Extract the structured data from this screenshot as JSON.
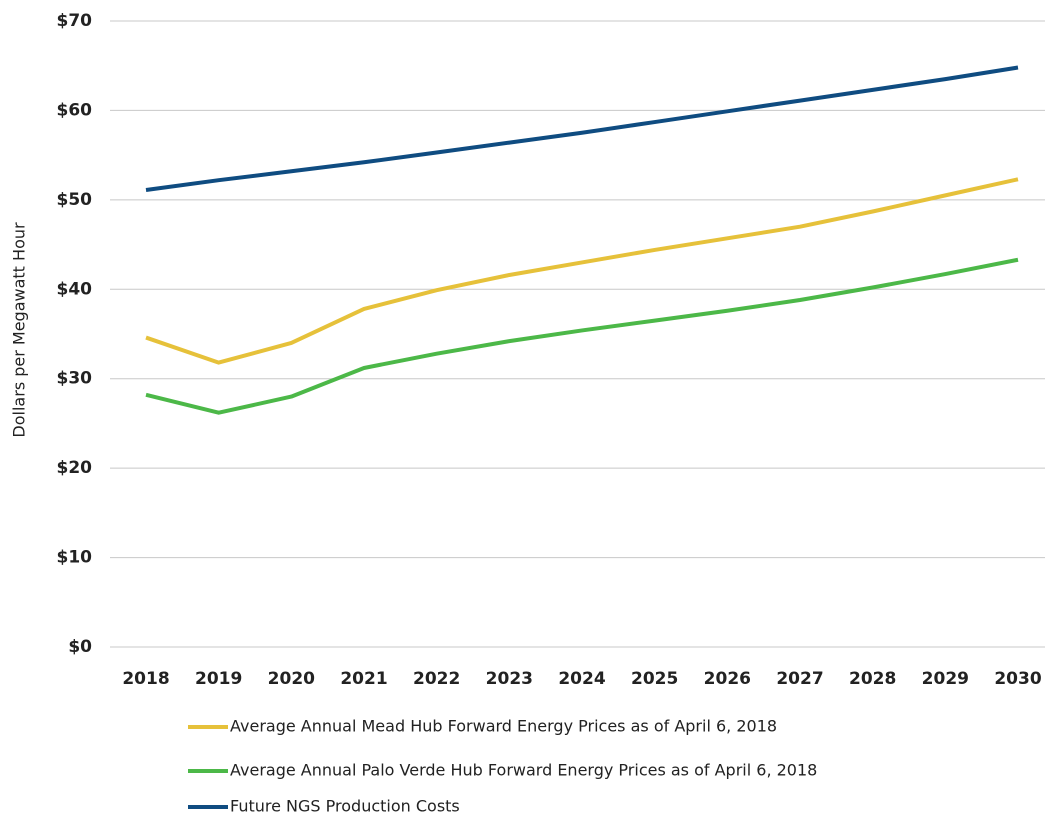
{
  "chart_data": {
    "type": "line",
    "y_label": "Dollars per Megawatt Hour",
    "categories": [
      "2018",
      "2019",
      "2020",
      "2021",
      "2022",
      "2023",
      "2024",
      "2025",
      "2026",
      "2027",
      "2028",
      "2029",
      "2030"
    ],
    "series": [
      {
        "name": "Average Annual Mead Hub Forward Energy Prices as of April 6, 2018",
        "color": "#e6c13a",
        "values": [
          34.6,
          31.8,
          34.0,
          37.8,
          39.9,
          41.6,
          43.0,
          44.4,
          45.7,
          47.0,
          48.7,
          50.5,
          52.3
        ]
      },
      {
        "name": "Average Annual Palo Verde Hub Forward Energy Prices as of April 6, 2018",
        "color": "#4cb848",
        "values": [
          28.2,
          26.2,
          28.0,
          31.2,
          32.8,
          34.2,
          35.4,
          36.5,
          37.6,
          38.8,
          40.2,
          41.7,
          43.3
        ]
      },
      {
        "name": "Future NGS Production Costs",
        "color": "#0f4c81",
        "values": [
          51.1,
          52.2,
          53.2,
          54.2,
          55.3,
          56.4,
          57.5,
          58.7,
          59.9,
          61.1,
          62.3,
          63.5,
          64.8
        ]
      }
    ],
    "ylim": [
      0,
      70
    ],
    "yticks": [
      {
        "value": 0,
        "label": "$0"
      },
      {
        "value": 10,
        "label": "$10"
      },
      {
        "value": 20,
        "label": "$20"
      },
      {
        "value": 30,
        "label": "$30"
      },
      {
        "value": 40,
        "label": "$40"
      },
      {
        "value": 50,
        "label": "$50"
      },
      {
        "value": 60,
        "label": "$60"
      },
      {
        "value": 70,
        "label": "$70"
      }
    ],
    "grid": true,
    "legend": "bottom"
  }
}
